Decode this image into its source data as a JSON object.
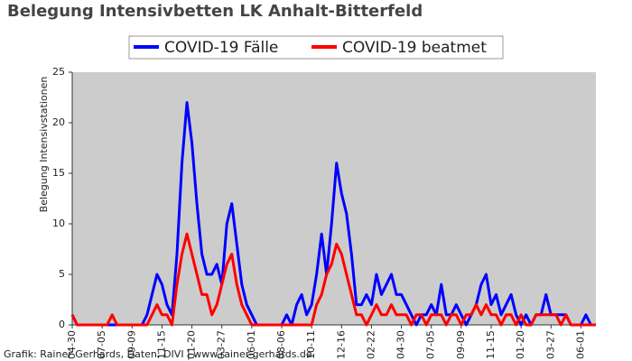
{
  "chart_data": {
    "type": "line",
    "title": "Belegung Intensivbetten LK Anhalt-Bitterfeld",
    "ylabel": "Belegung Intensivstationen",
    "source": "Grafik: Rainer Gerhards, Daten: DIVI | www.rainer-gerhards.de",
    "categories": [
      "04-30",
      null,
      null,
      null,
      null,
      null,
      "07-05",
      null,
      null,
      null,
      null,
      null,
      "09-09",
      null,
      null,
      null,
      null,
      null,
      "11-15",
      null,
      null,
      null,
      null,
      null,
      "01-20",
      null,
      null,
      null,
      null,
      null,
      "03-27",
      null,
      null,
      null,
      null,
      null,
      "06-01",
      null,
      null,
      null,
      null,
      null,
      "08-06",
      null,
      null,
      null,
      null,
      null,
      "10-11",
      null,
      null,
      null,
      null,
      null,
      "12-16",
      null,
      null,
      null,
      null,
      null,
      "02-22",
      null,
      null,
      null,
      null,
      null,
      "04-30",
      null,
      null,
      null,
      null,
      null,
      "07-05",
      null,
      null,
      null,
      null,
      null,
      "09-09",
      null,
      null,
      null,
      null,
      null,
      "11-15",
      null,
      null,
      null,
      null,
      null,
      "01-20",
      null,
      null,
      null,
      null,
      null,
      "03-27",
      null,
      null,
      null,
      null,
      null,
      "06-01",
      null,
      null,
      null
    ],
    "series": [
      {
        "name": "COVID-19 Fälle",
        "color": "#0000ff",
        "values": [
          1,
          0,
          0,
          0,
          0,
          0,
          0,
          0,
          0,
          0,
          0,
          0,
          0,
          0,
          0,
          1,
          3,
          5,
          4,
          2,
          1,
          7,
          16,
          22,
          18,
          12,
          7,
          5,
          5,
          6,
          4,
          10,
          12,
          8,
          4,
          2,
          1,
          0,
          0,
          0,
          0,
          0,
          0,
          1,
          0,
          2,
          3,
          1,
          2,
          5,
          9,
          5,
          10,
          16,
          13,
          11,
          7,
          2,
          2,
          3,
          2,
          5,
          3,
          4,
          5,
          3,
          3,
          2,
          1,
          0,
          1,
          1,
          2,
          1,
          4,
          1,
          1,
          2,
          1,
          0,
          1,
          2,
          4,
          5,
          2,
          3,
          1,
          2,
          3,
          1,
          0,
          1,
          0,
          1,
          1,
          3,
          1,
          1,
          1,
          1,
          0,
          0,
          0,
          1,
          0,
          0
        ]
      },
      {
        "name": "COVID-19 beatmet",
        "color": "#ff0000",
        "values": [
          1,
          0,
          0,
          0,
          0,
          0,
          0,
          0,
          1,
          0,
          0,
          0,
          0,
          0,
          0,
          0,
          1,
          2,
          1,
          1,
          0,
          4,
          7,
          9,
          7,
          5,
          3,
          3,
          1,
          2,
          4,
          6,
          7,
          4,
          2,
          1,
          0,
          0,
          0,
          0,
          0,
          0,
          0,
          0,
          0,
          0,
          0,
          0,
          0,
          2,
          3,
          5,
          6,
          8,
          7,
          5,
          3,
          1,
          1,
          0,
          1,
          2,
          1,
          1,
          2,
          1,
          1,
          1,
          0,
          1,
          1,
          0,
          1,
          1,
          1,
          0,
          1,
          1,
          0,
          1,
          1,
          2,
          1,
          2,
          1,
          1,
          0,
          1,
          1,
          0,
          1,
          0,
          0,
          1,
          1,
          1,
          1,
          1,
          0,
          1,
          0,
          0,
          0,
          0,
          0,
          0
        ]
      }
    ],
    "ylim": [
      0,
      25
    ],
    "yticks": [
      0,
      5,
      10,
      15,
      20,
      25
    ]
  }
}
